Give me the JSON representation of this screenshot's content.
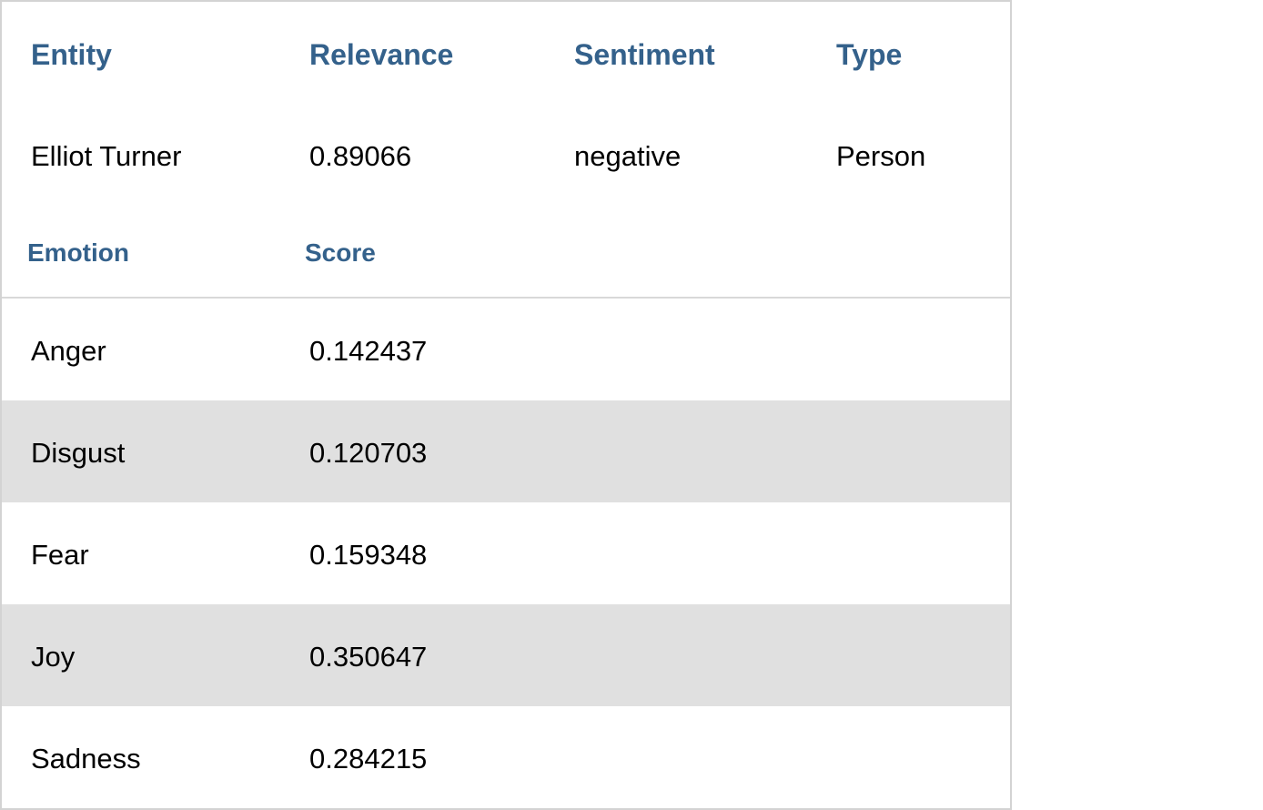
{
  "entity_table": {
    "headers": {
      "entity": "Entity",
      "relevance": "Relevance",
      "sentiment": "Sentiment",
      "type": "Type"
    },
    "row": {
      "entity": "Elliot Turner",
      "relevance": "0.89066",
      "sentiment": "negative",
      "type": "Person"
    }
  },
  "emotion_table": {
    "headers": {
      "emotion": "Emotion",
      "score": "Score"
    },
    "rows": [
      {
        "emotion": "Anger",
        "score": "0.142437"
      },
      {
        "emotion": "Disgust",
        "score": "0.120703"
      },
      {
        "emotion": "Fear",
        "score": "0.159348"
      },
      {
        "emotion": "Joy",
        "score": "0.350647"
      },
      {
        "emotion": "Sadness",
        "score": "0.284215"
      }
    ]
  },
  "colors": {
    "header_text": "#34618b",
    "alt_row_bg": "#e0e0e0",
    "border": "#d3d3d3"
  }
}
